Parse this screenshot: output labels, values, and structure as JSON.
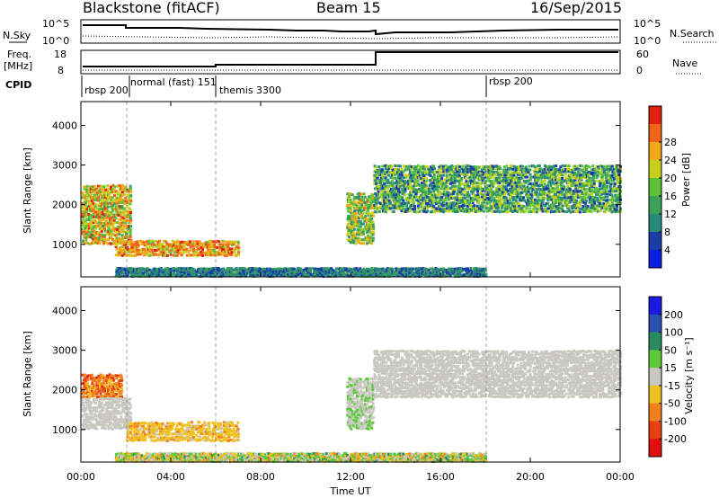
{
  "header": {
    "station": "Blackstone (fitACF)",
    "beam": "Beam 15",
    "date": "16/Sep/2015"
  },
  "nsky_panel": {
    "left_label": "N.Sky",
    "right_label": "N.Search",
    "left_ticks": [
      "10^5",
      "10^0"
    ],
    "right_ticks": [
      "10^5",
      "10^0"
    ]
  },
  "freq_panel": {
    "left_label_1": "Freq.",
    "left_label_2": "[MHz]",
    "right_label": "Nave",
    "left_ticks": [
      "18",
      "8"
    ],
    "right_ticks": [
      "60",
      "0"
    ]
  },
  "cpid": {
    "label": "CPID",
    "segments": [
      {
        "name": "rbsp 200",
        "start_hour": 0
      },
      {
        "name": "normal (fast) 151",
        "start_hour": 1.9
      },
      {
        "name": "themis 3300",
        "start_hour": 6
      },
      {
        "name": "rbsp 200",
        "start_hour": 18
      }
    ]
  },
  "x_axis": {
    "label": "Time UT",
    "ticks": [
      "00:00",
      "04:00",
      "08:00",
      "12:00",
      "16:00",
      "20:00",
      "00:00"
    ]
  },
  "power_panel": {
    "ylabel": "Slant Range [km]",
    "yticks": [
      "1000",
      "2000",
      "3000",
      "4000"
    ],
    "colorbar_label": "Power [dB]",
    "colorbar_ticks": [
      "4",
      "8",
      "12",
      "16",
      "20",
      "24",
      "28"
    ],
    "colors": [
      "#0a1fe0",
      "#1a3da8",
      "#2a8a7a",
      "#3aa05a",
      "#5cc23a",
      "#c8d01e",
      "#f0a818",
      "#f06418",
      "#e02010"
    ]
  },
  "velocity_panel": {
    "ylabel": "Slant Range [km]",
    "yticks": [
      "1000",
      "2000",
      "3000",
      "4000"
    ],
    "colorbar_label": "Velocity [m s⁻¹]",
    "colorbar_ticks": [
      "200",
      "100",
      "50",
      "15",
      "-15",
      "-50",
      "-100",
      "-200"
    ],
    "colors": [
      "#1a1ae0",
      "#2a50b0",
      "#2a8a60",
      "#5cc83a",
      "#c8c8c0",
      "#f0c020",
      "#f08020",
      "#e84010",
      "#e01010"
    ]
  },
  "chart_data": {
    "type": "heatmap",
    "x_range_hours": [
      0,
      24
    ],
    "y_range_km": [
      180,
      4600
    ],
    "power_echo_regions": [
      {
        "t_start": 0.0,
        "t_end": 2.2,
        "range_km": [
          1000,
          2500
        ],
        "power_db": [
          12,
          28
        ]
      },
      {
        "t_start": 1.5,
        "t_end": 7.0,
        "range_km": [
          700,
          1100
        ],
        "power_db": [
          16,
          28
        ]
      },
      {
        "t_start": 11.8,
        "t_end": 13.0,
        "range_km": [
          1000,
          2300
        ],
        "power_db": [
          8,
          24
        ]
      },
      {
        "t_start": 13.0,
        "t_end": 24.0,
        "range_km": [
          1800,
          3000
        ],
        "power_db": [
          4,
          20
        ]
      },
      {
        "t_start": 1.5,
        "t_end": 18.0,
        "range_km": [
          180,
          400
        ],
        "power_db": [
          4,
          12
        ]
      }
    ],
    "velocity_echo_regions": [
      {
        "t_start": 0.0,
        "t_end": 1.8,
        "range_km": [
          1800,
          2400
        ],
        "velocity": [
          -200,
          -50
        ]
      },
      {
        "t_start": 0.0,
        "t_end": 2.2,
        "range_km": [
          1000,
          1800
        ],
        "velocity": [
          -15,
          15
        ]
      },
      {
        "t_start": 2.0,
        "t_end": 7.0,
        "range_km": [
          700,
          1200
        ],
        "velocity": [
          -100,
          -15
        ]
      },
      {
        "t_start": 11.8,
        "t_end": 13.0,
        "range_km": [
          1000,
          2300
        ],
        "velocity": [
          -15,
          50
        ]
      },
      {
        "t_start": 13.0,
        "t_end": 24.0,
        "range_km": [
          1800,
          3000
        ],
        "velocity": [
          -15,
          15
        ]
      },
      {
        "t_start": 1.5,
        "t_end": 18.0,
        "range_km": [
          180,
          400
        ],
        "velocity": [
          -100,
          100
        ]
      }
    ]
  }
}
